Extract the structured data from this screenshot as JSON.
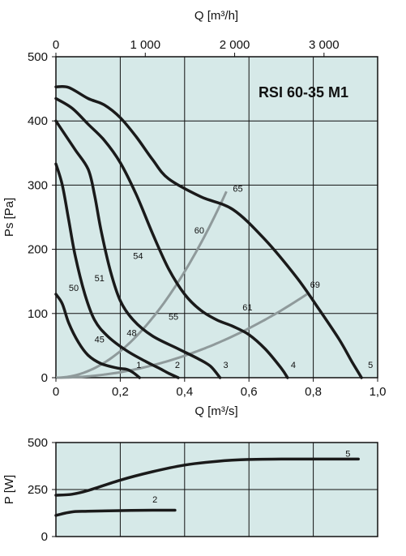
{
  "chart_data": [
    {
      "type": "line",
      "title": "RSI 60-35 M1",
      "xlabel": "Q [m³/s]",
      "x2label": "Q [m³/h]",
      "ylabel": "Ps [Pa]",
      "xlim": [
        0,
        1.0
      ],
      "ylim": [
        0,
        500
      ],
      "x2lim": [
        0,
        3600
      ],
      "grid": true,
      "x_ticks": [
        0,
        0.2,
        0.4,
        0.6,
        0.8,
        1.0
      ],
      "x_tick_labels": [
        "0",
        "0,2",
        "0,4",
        "0,6",
        "0,8",
        "1,0"
      ],
      "x2_ticks": [
        0,
        1000,
        2000,
        3000
      ],
      "x2_tick_labels": [
        "0",
        "1 000",
        "2 000",
        "3 000"
      ],
      "y_ticks": [
        0,
        100,
        200,
        300,
        400,
        500
      ],
      "y_tick_labels": [
        "0",
        "100",
        "200",
        "300",
        "400",
        "500"
      ],
      "series": [
        {
          "name": "1",
          "points": [
            [
              0,
              130
            ],
            [
              0.02,
              115
            ],
            [
              0.04,
              85
            ],
            [
              0.07,
              55
            ],
            [
              0.1,
              35
            ],
            [
              0.14,
              22
            ],
            [
              0.19,
              15
            ],
            [
              0.22,
              13
            ],
            [
              0.24,
              8
            ],
            [
              0.26,
              0
            ]
          ]
        },
        {
          "name": "2",
          "points": [
            [
              0,
              333
            ],
            [
              0.02,
              300
            ],
            [
              0.04,
              245
            ],
            [
              0.06,
              190
            ],
            [
              0.09,
              130
            ],
            [
              0.12,
              90
            ],
            [
              0.16,
              65
            ],
            [
              0.22,
              42
            ],
            [
              0.28,
              25
            ],
            [
              0.32,
              15
            ],
            [
              0.35,
              7
            ],
            [
              0.38,
              0
            ]
          ]
        },
        {
          "name": "3",
          "points": [
            [
              0,
              400
            ],
            [
              0.02,
              385
            ],
            [
              0.06,
              355
            ],
            [
              0.1,
              325
            ],
            [
              0.12,
              285
            ],
            [
              0.14,
              230
            ],
            [
              0.17,
              165
            ],
            [
              0.2,
              120
            ],
            [
              0.24,
              90
            ],
            [
              0.3,
              65
            ],
            [
              0.38,
              45
            ],
            [
              0.44,
              30
            ],
            [
              0.48,
              18
            ],
            [
              0.51,
              0
            ]
          ]
        },
        {
          "name": "4",
          "points": [
            [
              0,
              435
            ],
            [
              0.05,
              420
            ],
            [
              0.1,
              395
            ],
            [
              0.15,
              370
            ],
            [
              0.2,
              335
            ],
            [
              0.25,
              285
            ],
            [
              0.3,
              225
            ],
            [
              0.35,
              170
            ],
            [
              0.4,
              130
            ],
            [
              0.45,
              105
            ],
            [
              0.5,
              90
            ],
            [
              0.55,
              80
            ],
            [
              0.6,
              67
            ],
            [
              0.65,
              45
            ],
            [
              0.7,
              15
            ],
            [
              0.72,
              0
            ]
          ]
        },
        {
          "name": "5",
          "points": [
            [
              0,
              453
            ],
            [
              0.04,
              452
            ],
            [
              0.1,
              435
            ],
            [
              0.15,
              425
            ],
            [
              0.2,
              405
            ],
            [
              0.25,
              375
            ],
            [
              0.3,
              340
            ],
            [
              0.35,
              310
            ],
            [
              0.45,
              282
            ],
            [
              0.55,
              262
            ],
            [
              0.65,
              215
            ],
            [
              0.75,
              155
            ],
            [
              0.82,
              105
            ],
            [
              0.88,
              60
            ],
            [
              0.92,
              25
            ],
            [
              0.95,
              0
            ]
          ]
        }
      ],
      "series_labels": [
        "1",
        "2",
        "3",
        "4",
        "5"
      ],
      "curve_labels": [
        "50",
        "51",
        "54",
        "60",
        "65",
        "45",
        "48",
        "55",
        "61",
        "69"
      ]
    },
    {
      "type": "line",
      "xlabel": "",
      "ylabel": "P [W]",
      "xlim": [
        0,
        1.0
      ],
      "ylim": [
        0,
        500
      ],
      "grid": true,
      "y_ticks": [
        0,
        250,
        500
      ],
      "y_tick_labels": [
        "0",
        "250",
        "500"
      ],
      "series": [
        {
          "name": "5",
          "points": [
            [
              0,
              220
            ],
            [
              0.05,
              225
            ],
            [
              0.1,
              245
            ],
            [
              0.2,
              300
            ],
            [
              0.3,
              345
            ],
            [
              0.4,
              380
            ],
            [
              0.5,
              400
            ],
            [
              0.6,
              410
            ],
            [
              0.7,
              412
            ],
            [
              0.8,
              412
            ],
            [
              0.94,
              412
            ]
          ]
        },
        {
          "name": "2",
          "points": [
            [
              0,
              112
            ],
            [
              0.03,
              125
            ],
            [
              0.06,
              133
            ],
            [
              0.1,
              135
            ],
            [
              0.2,
              138
            ],
            [
              0.3,
              140
            ],
            [
              0.37,
              140
            ]
          ]
        }
      ]
    }
  ]
}
